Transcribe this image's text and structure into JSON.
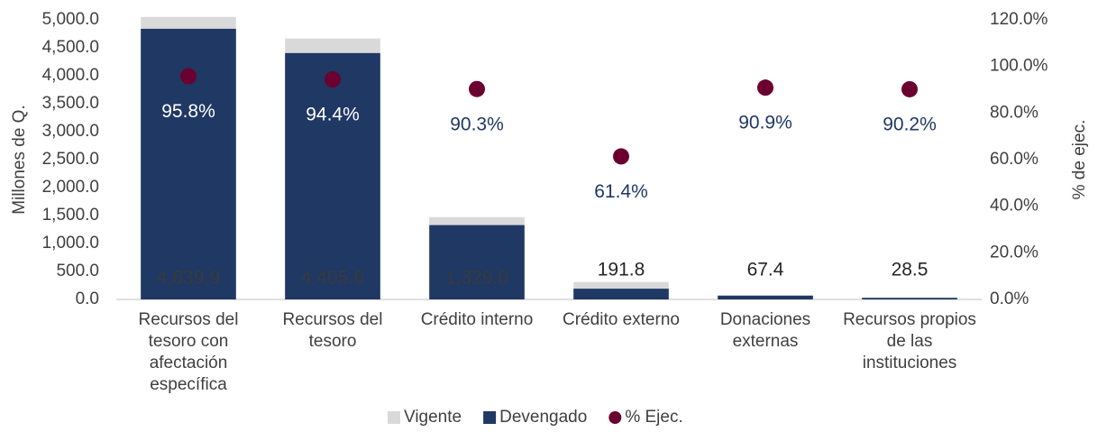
{
  "chart_data": {
    "type": "bar",
    "y_axis_label": "Millones de Q.",
    "y2_axis_label": "% de ejec.",
    "categories": [
      "Recursos del tesoro con afectación específica",
      "Recursos del tesoro",
      "Crédito interno",
      "Crédito externo",
      "Donaciones externas",
      "Recursos propios de las instituciones"
    ],
    "series": [
      {
        "name": "Vigente",
        "color": "#d9d9d9",
        "values": [
          5052,
          4667,
          1472,
          312,
          74,
          32
        ]
      },
      {
        "name": "Devengado",
        "color": "#1f3864",
        "values": [
          4839.9,
          4405.6,
          1329.0,
          191.8,
          67.4,
          28.5
        ],
        "value_labels": [
          "4,839.9",
          "4,405.6",
          "1,329.0",
          "191.8",
          "67.4",
          "28.5"
        ]
      },
      {
        "name": "% Ejec.",
        "color": "#6b0030",
        "axis": "y2",
        "values": [
          95.8,
          94.4,
          90.3,
          61.4,
          90.9,
          90.2
        ],
        "value_labels": [
          "95.8%",
          "94.4%",
          "90.3%",
          "61.4%",
          "90.9%",
          "90.2%"
        ]
      }
    ],
    "ylim": [
      0,
      5000
    ],
    "yticks": [
      {
        "value": 0,
        "label": "0.0"
      },
      {
        "value": 500,
        "label": "500.0"
      },
      {
        "value": 1000,
        "label": "1,000.0"
      },
      {
        "value": 1500,
        "label": "1,500.0"
      },
      {
        "value": 2000,
        "label": "2,000.0"
      },
      {
        "value": 2500,
        "label": "2,500.0"
      },
      {
        "value": 3000,
        "label": "3,000.0"
      },
      {
        "value": 3500,
        "label": "3,500.0"
      },
      {
        "value": 4000,
        "label": "4,000.0"
      },
      {
        "value": 4500,
        "label": "4,500.0"
      },
      {
        "value": 5000,
        "label": "5,000.0"
      }
    ],
    "y2lim": [
      0,
      120
    ],
    "y2ticks": [
      {
        "value": 0,
        "label": "0.0%"
      },
      {
        "value": 20,
        "label": "20.0%"
      },
      {
        "value": 40,
        "label": "40.0%"
      },
      {
        "value": 60,
        "label": "60.0%"
      },
      {
        "value": 80,
        "label": "80.0%"
      },
      {
        "value": 100,
        "label": "100.0%"
      },
      {
        "value": 120,
        "label": "120.0%"
      }
    ],
    "grid": false
  }
}
